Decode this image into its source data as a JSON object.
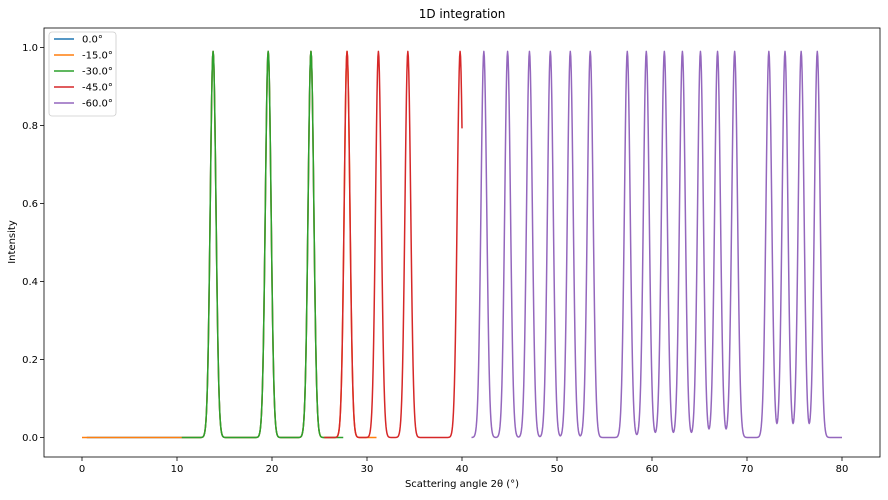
{
  "chart_data": {
    "type": "line",
    "title": "1D integration",
    "xlabel": "Scattering angle 2θ (°)",
    "ylabel": "Intensity",
    "xlim": [
      -4,
      84
    ],
    "ylim": [
      -0.05,
      1.05
    ],
    "xticks": [
      0,
      10,
      20,
      30,
      40,
      50,
      60,
      70,
      80
    ],
    "xtick_labels": [
      "0",
      "10",
      "20",
      "30",
      "40",
      "50",
      "60",
      "70",
      "80"
    ],
    "yticks": [
      0.0,
      0.2,
      0.4,
      0.6,
      0.8,
      1.0
    ],
    "ytick_labels": [
      "0.0",
      "0.2",
      "0.4",
      "0.6",
      "0.8",
      "1.0"
    ],
    "grid": false,
    "legend_position": "top-left",
    "peak_width": 0.3,
    "series": [
      {
        "name": "0.0°",
        "color": "#1f77b4",
        "x_range": [
          0.5,
          25
        ],
        "peaks": [
          [
            13.8,
            0.99
          ],
          [
            19.6,
            0.99
          ],
          [
            24.1,
            0.99
          ]
        ]
      },
      {
        "name": "-15.0°",
        "color": "#ff7f0e",
        "x_range": [
          0,
          31
        ],
        "peaks": [
          [
            13.8,
            0.99
          ],
          [
            19.6,
            0.99
          ],
          [
            24.1,
            0.99
          ],
          [
            27.9,
            0.99
          ]
        ]
      },
      {
        "name": "-30.0°",
        "color": "#2ca02c",
        "x_range": [
          10.5,
          27.5
        ],
        "peaks": [
          [
            13.8,
            0.99
          ],
          [
            19.6,
            0.99
          ],
          [
            24.1,
            0.99
          ]
        ]
      },
      {
        "name": "-45.0°",
        "color": "#d62728",
        "x_range": [
          25.5,
          40
        ],
        "peaks": [
          [
            27.9,
            0.99
          ],
          [
            31.2,
            0.99
          ],
          [
            34.3,
            0.99
          ],
          [
            39.8,
            0.99
          ]
        ]
      },
      {
        "name": "-60.0°",
        "color": "#9467bd",
        "x_range": [
          41,
          80
        ],
        "peaks": [
          [
            42.3,
            0.99
          ],
          [
            44.8,
            0.99
          ],
          [
            47.1,
            0.99
          ],
          [
            49.3,
            0.99
          ],
          [
            51.4,
            0.99
          ],
          [
            53.5,
            0.99
          ],
          [
            57.4,
            0.99
          ],
          [
            59.4,
            0.99
          ],
          [
            61.3,
            0.99
          ],
          [
            63.2,
            0.99
          ],
          [
            65.1,
            0.99
          ],
          [
            66.9,
            0.99
          ],
          [
            68.7,
            0.99
          ],
          [
            72.3,
            0.99
          ],
          [
            74.0,
            0.99
          ],
          [
            75.7,
            0.99
          ],
          [
            77.4,
            0.99
          ]
        ]
      }
    ]
  }
}
